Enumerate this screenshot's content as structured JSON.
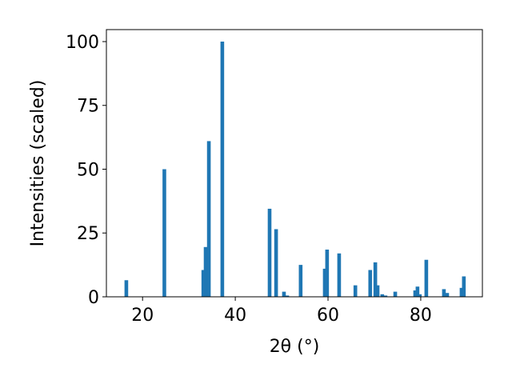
{
  "chart_data": {
    "type": "bar",
    "xlabel": "2θ (°)",
    "ylabel": "Intensities (scaled)",
    "x": [
      16.5,
      24.7,
      33.1,
      33.6,
      34.3,
      37.2,
      47.4,
      48.8,
      50.5,
      51.2,
      54.1,
      59.3,
      59.8,
      62.4,
      65.9,
      69.1,
      70.2,
      70.7,
      71.7,
      72.4,
      74.5,
      78.8,
      79.3,
      79.8,
      81.2,
      85.0,
      85.7,
      88.8,
      89.3
    ],
    "values": [
      6.5,
      50,
      10.5,
      19.5,
      61,
      100,
      34.5,
      26.5,
      2,
      0.5,
      12.5,
      11,
      18.5,
      17,
      4.5,
      10.5,
      13.5,
      4.5,
      1,
      0.5,
      2,
      2.5,
      4,
      1,
      14.5,
      3,
      1.5,
      3.5,
      8
    ],
    "color": "#1f77b4",
    "xlim": [
      12.2,
      93.3
    ],
    "xticks": [
      20,
      40,
      60,
      80
    ],
    "ylim": [
      0,
      104.7
    ],
    "yticks": [
      0,
      25,
      50,
      75,
      100
    ]
  }
}
